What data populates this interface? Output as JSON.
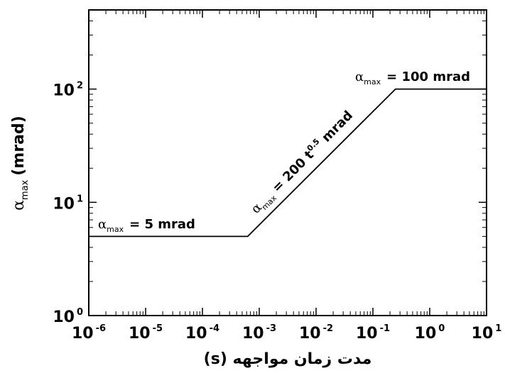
{
  "chart_data": {
    "type": "line",
    "x_scale": "log",
    "y_scale": "log",
    "xlim": [
      1e-06,
      10
    ],
    "ylim": [
      1,
      500
    ],
    "x_ticks": [
      {
        "base": "10",
        "exp": "-6"
      },
      {
        "base": "10",
        "exp": "-5"
      },
      {
        "base": "10",
        "exp": "-4"
      },
      {
        "base": "10",
        "exp": "-3"
      },
      {
        "base": "10",
        "exp": "-2"
      },
      {
        "base": "10",
        "exp": "-1"
      },
      {
        "base": "10",
        "exp": "0"
      },
      {
        "base": "10",
        "exp": "1"
      }
    ],
    "y_ticks": [
      {
        "base": "10",
        "exp": "0"
      },
      {
        "base": "10",
        "exp": "1"
      },
      {
        "base": "10",
        "exp": "2"
      }
    ],
    "xlabel": "مدت زمان مواجهه (s)",
    "ylabel": {
      "symbol": "α",
      "sub": "max",
      "unit": "(mrad)"
    },
    "series": [
      {
        "x": [
          1e-06,
          0.000625,
          0.25,
          10
        ],
        "y": [
          5,
          5,
          100,
          100
        ]
      }
    ],
    "annotations": [
      {
        "symbol": "α",
        "sub": "max",
        "text": "= 5 mrad"
      },
      {
        "symbol": "α",
        "sub": "max",
        "text_a": "= 200 t",
        "sup": "0.5",
        "text_b": " mrad"
      },
      {
        "symbol": "α",
        "sub": "max",
        "text": "= 100 mrad"
      }
    ],
    "grid": false,
    "colors": {
      "line": "#000000"
    }
  }
}
